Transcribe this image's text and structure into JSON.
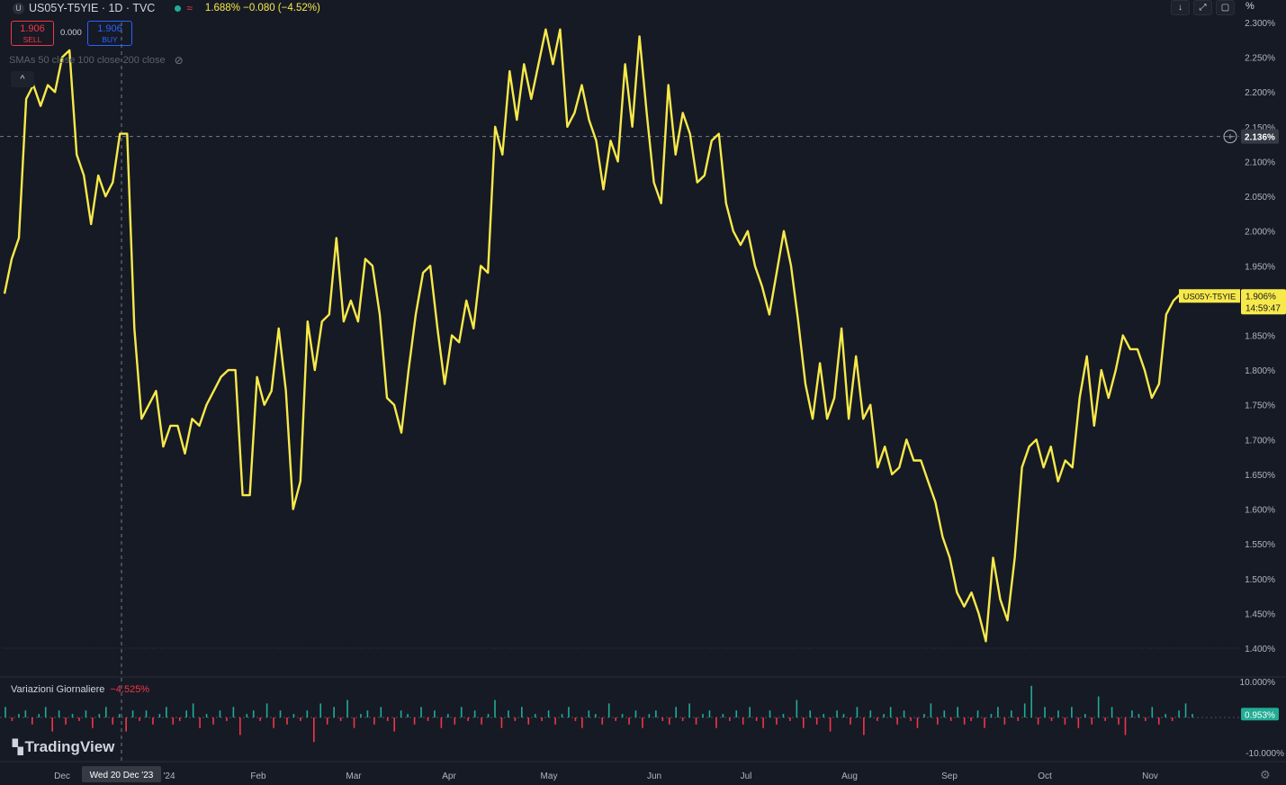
{
  "header": {
    "symbol_icon": "U",
    "symbol": "US05Y-T5YIE · 1D · TVC",
    "status_icon": "market-status-dot",
    "compare_icon": "≈",
    "quote": "1.688% −0.080 (−4.52%)"
  },
  "trade": {
    "sell_price": "1.906",
    "sell_label": "SELL",
    "spread": "0.000",
    "buy_price": "1.906",
    "buy_label": "BUY"
  },
  "indicators_legend": {
    "sma_text": "SMAs 50 close 100 close 200 close",
    "eye_icon": "eye-off-icon"
  },
  "toolbar": {
    "percent_label": "%"
  },
  "crosshair": {
    "date_label": "Wed 20 Dec '23",
    "price_label": "2.136%"
  },
  "last_price": {
    "symbol_tag": "US05Y-T5YIE",
    "value": "1.906%",
    "countdown": "14:59:47"
  },
  "indicator": {
    "title": "Variazioni Giornaliere",
    "value": "−4.525%",
    "last_value_label": "0.953%"
  },
  "branding": {
    "logo_text": "TradingView"
  },
  "colors": {
    "background": "#161a25",
    "line": "#f7e94a",
    "up_bar": "#22ab94",
    "down_bar": "#f23645",
    "sell": "#f23645",
    "buy": "#2962ff"
  },
  "chart_data": {
    "type": "line",
    "series": [
      {
        "values": [
          1.91,
          1.96,
          1.99,
          2.19,
          2.21,
          2.18,
          2.21,
          2.2,
          2.25,
          2.26,
          2.11,
          2.08,
          2.01,
          2.08,
          2.05,
          2.07,
          2.14,
          2.14,
          1.86,
          1.73,
          1.75,
          1.77,
          1.69,
          1.72,
          1.72,
          1.68,
          1.73,
          1.72,
          1.75,
          1.77,
          1.79,
          1.8,
          1.8,
          1.62,
          1.62,
          1.79,
          1.75,
          1.77,
          1.86,
          1.77,
          1.6,
          1.64,
          1.87,
          1.8,
          1.87,
          1.88,
          1.99,
          1.87,
          1.9,
          1.87,
          1.96,
          1.95,
          1.88,
          1.76,
          1.75,
          1.71,
          1.8,
          1.88,
          1.94,
          1.95,
          1.86,
          1.78,
          1.85,
          1.84,
          1.9,
          1.86,
          1.95,
          1.94,
          2.15,
          2.11,
          2.23,
          2.16,
          2.24,
          2.19,
          2.24,
          2.29,
          2.24,
          2.29,
          2.15,
          2.17,
          2.21,
          2.16,
          2.13,
          2.06,
          2.13,
          2.1,
          2.24,
          2.15,
          2.28,
          2.17,
          2.07,
          2.04,
          2.21,
          2.11,
          2.17,
          2.14,
          2.07,
          2.08,
          2.13,
          2.14,
          2.04,
          2.0,
          1.98,
          2.0,
          1.95,
          1.92,
          1.88,
          1.94,
          2.0,
          1.95,
          1.87,
          1.78,
          1.73,
          1.81,
          1.73,
          1.76,
          1.86,
          1.73,
          1.82,
          1.73,
          1.75,
          1.66,
          1.69,
          1.65,
          1.66,
          1.7,
          1.67,
          1.67,
          1.64,
          1.61,
          1.56,
          1.53,
          1.48,
          1.46,
          1.48,
          1.45,
          1.41,
          1.53,
          1.47,
          1.44,
          1.53,
          1.66,
          1.69,
          1.7,
          1.66,
          1.69,
          1.64,
          1.67,
          1.66,
          1.76,
          1.82,
          1.72,
          1.8,
          1.76,
          1.8,
          1.85,
          1.83,
          1.83,
          1.8,
          1.76,
          1.78,
          1.88,
          1.9,
          1.91,
          1.906
        ]
      }
    ],
    "x_tick_labels": [
      "Dec",
      "'24",
      "Feb",
      "Mar",
      "Apr",
      "May",
      "Jun",
      "Jul",
      "Aug",
      "Sep",
      "Oct",
      "Nov"
    ],
    "y_tick_labels": [
      "2.300%",
      "2.250%",
      "2.200%",
      "2.150%",
      "2.100%",
      "2.050%",
      "2.000%",
      "1.950%",
      "1.900%",
      "1.850%",
      "1.800%",
      "1.750%",
      "1.700%",
      "1.650%",
      "1.600%",
      "1.550%",
      "1.500%",
      "1.450%",
      "1.400%"
    ],
    "y_range": [
      1.4,
      2.3
    ],
    "grid": false,
    "indicator_series": {
      "name": "Variazioni Giornaliere",
      "y_tick_labels": [
        "10.000%",
        "-10.000%"
      ],
      "y_range": [
        -10,
        10
      ],
      "values": [
        3,
        -1,
        1,
        2,
        -2,
        1,
        3,
        -4,
        2,
        -2,
        1,
        -1,
        2,
        -3,
        1,
        3,
        -2,
        1,
        -4,
        2,
        -1,
        2,
        -2,
        1,
        3,
        -2,
        -1,
        2,
        4,
        -3,
        1,
        -2,
        2,
        -1,
        3,
        -5,
        1,
        2,
        -1,
        4,
        -3,
        2,
        -2,
        1,
        -1,
        2,
        -7,
        4,
        -2,
        3,
        -1,
        5,
        -3,
        1,
        2,
        -2,
        3,
        -1,
        -4,
        2,
        1,
        -2,
        3,
        -1,
        2,
        -3,
        1,
        -2,
        3,
        -1,
        2,
        -2,
        1,
        5,
        -3,
        2,
        -1,
        3,
        -2,
        1,
        -1,
        2,
        -2,
        1,
        3,
        -1,
        -3,
        2,
        1,
        -2,
        4,
        -1,
        1,
        -2,
        2,
        -3,
        1,
        2,
        -1,
        -2,
        3,
        -1,
        4,
        -2,
        1,
        2,
        -3,
        1,
        -1,
        2,
        -2,
        3,
        -1,
        -3,
        2,
        -2,
        1,
        -1,
        5,
        -3,
        2,
        -2,
        1,
        -4,
        2,
        1,
        -2,
        3,
        -5,
        2,
        -1,
        1,
        3,
        -2,
        2,
        -1,
        -3,
        1,
        4,
        -2,
        2,
        -1,
        3,
        -2,
        -1,
        2,
        -3,
        1,
        3,
        -2,
        2,
        -1,
        4,
        9,
        -2,
        3,
        -1,
        2,
        -2,
        3,
        -3,
        1,
        -2,
        6,
        -1,
        3,
        -2,
        -5,
        2,
        1,
        -1,
        3,
        -2,
        1,
        -1,
        2,
        4,
        1
      ]
    }
  }
}
